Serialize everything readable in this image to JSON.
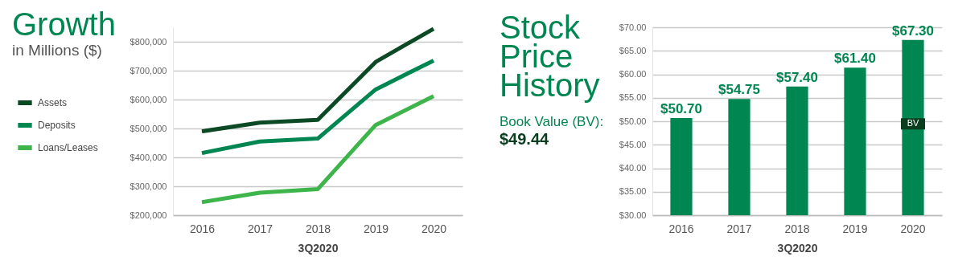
{
  "chart_data": [
    {
      "type": "line",
      "title": "Growth",
      "subtitle": "in Millions ($)",
      "xlabel": "3Q2020",
      "categories": [
        "2016",
        "2017",
        "2018",
        "2019",
        "2020"
      ],
      "series": [
        {
          "name": "Assets",
          "color": "#0b4a24",
          "values": [
            490000,
            520000,
            530000,
            730000,
            845000
          ]
        },
        {
          "name": "Deposits",
          "color": "#008751",
          "values": [
            415000,
            455000,
            465000,
            635000,
            735000
          ]
        },
        {
          "name": "Loans/Leases",
          "color": "#3db54a",
          "values": [
            245000,
            278000,
            290000,
            512000,
            612000
          ]
        }
      ],
      "ylim": [
        200000,
        850000
      ],
      "yticks": [
        {
          "value": 200000,
          "label": "$200,000"
        },
        {
          "value": 300000,
          "label": "$300,000"
        },
        {
          "value": 400000,
          "label": "$400,000"
        },
        {
          "value": 500000,
          "label": "$500,000"
        },
        {
          "value": 600000,
          "label": "$600,000"
        },
        {
          "value": 700000,
          "label": "$700,000"
        },
        {
          "value": 800000,
          "label": "$800,000"
        }
      ],
      "grid": "y",
      "legend": "left"
    },
    {
      "type": "bar",
      "title": "Stock Price History",
      "xlabel": "3Q2020",
      "categories": [
        "2016",
        "2017",
        "2018",
        "2019",
        "2020"
      ],
      "series": [
        {
          "color": "#008751",
          "values": [
            50.7,
            54.75,
            57.4,
            61.4,
            67.3
          ],
          "value_labels": [
            "$50.70",
            "$54.75",
            "$57.40",
            "$61.40",
            "$67.30"
          ]
        },
        {
          "type": "scatter",
          "name": "BV",
          "color": "#0b3d1f",
          "marker": "square",
          "values": [
            null,
            null,
            null,
            null,
            49.44
          ]
        }
      ],
      "ylim": [
        30,
        70
      ],
      "yticks": [
        {
          "value": 30,
          "label": "$30.00"
        },
        {
          "value": 35,
          "label": "$35.00"
        },
        {
          "value": 40,
          "label": "$40.00"
        },
        {
          "value": 45,
          "label": "$45.00"
        },
        {
          "value": 50,
          "label": "$50.00"
        },
        {
          "value": 55,
          "label": "$55.00"
        },
        {
          "value": 60,
          "label": "$60.00"
        },
        {
          "value": 65,
          "label": "$65.00"
        },
        {
          "value": 70,
          "label": "$70.00"
        }
      ],
      "grid": "y",
      "annotations": [
        "Book Value (BV):",
        "$49.44"
      ]
    }
  ]
}
